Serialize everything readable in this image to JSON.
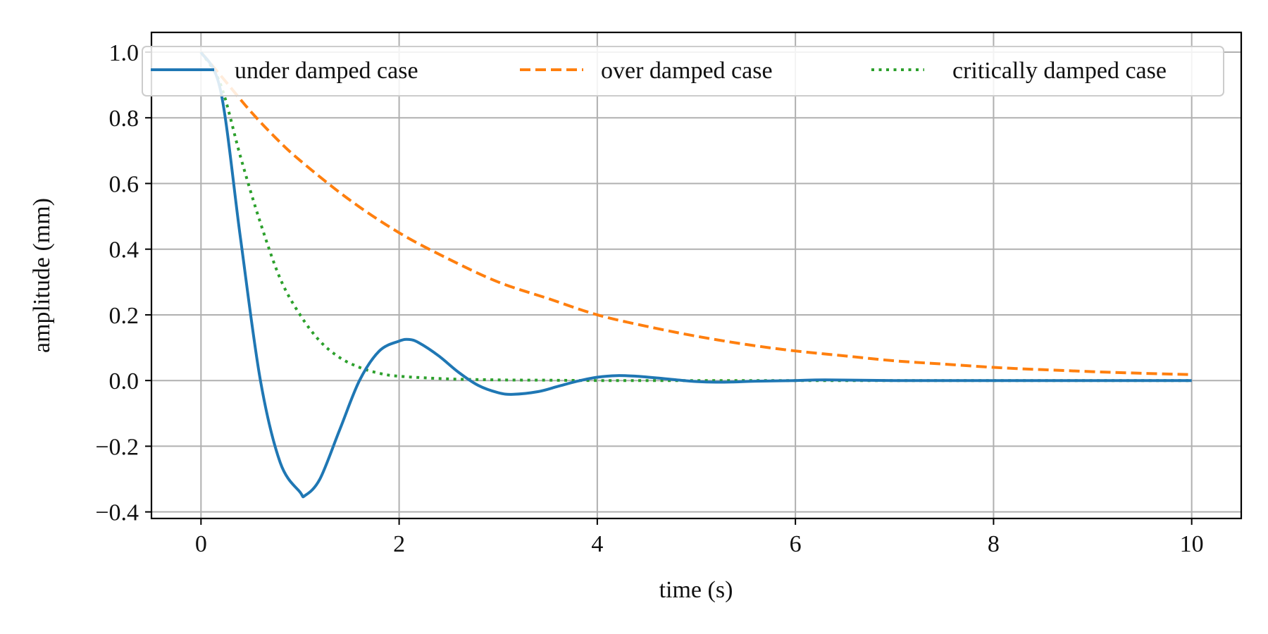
{
  "chart_data": {
    "type": "line",
    "xlabel": "time (s)",
    "ylabel": "amplitude (mm)",
    "xlim": [
      -0.5,
      10.5
    ],
    "ylim": [
      -0.42,
      1.06
    ],
    "xticks": [
      0,
      2,
      4,
      6,
      8,
      10
    ],
    "xtick_labels": [
      "0",
      "2",
      "4",
      "6",
      "8",
      "10"
    ],
    "yticks": [
      -0.4,
      -0.2,
      0.0,
      0.2,
      0.4,
      0.6,
      0.8,
      1.0
    ],
    "ytick_labels": [
      "−0.4",
      "−0.2",
      "0.0",
      "0.2",
      "0.4",
      "0.6",
      "0.8",
      "1.0"
    ],
    "grid": true,
    "legend_placement": "top",
    "series": [
      {
        "name": "under damped case",
        "color": "#1f77b4",
        "style": "solid",
        "x": [
          0,
          0.2,
          0.4,
          0.6,
          0.8,
          1.0,
          1.05,
          1.2,
          1.4,
          1.6,
          1.8,
          2.0,
          2.1,
          2.2,
          2.4,
          2.6,
          2.8,
          3.0,
          3.15,
          3.4,
          3.6,
          3.8,
          4.0,
          4.2,
          4.4,
          4.6,
          4.8,
          5.0,
          5.2,
          5.4,
          5.6,
          6.0,
          6.3,
          7.0,
          8.0,
          9.0,
          10.0
        ],
        "y": [
          1.0,
          0.88,
          0.43,
          0.0,
          -0.25,
          -0.34,
          -0.35,
          -0.3,
          -0.15,
          0.0,
          0.09,
          0.12,
          0.125,
          0.115,
          0.075,
          0.025,
          -0.015,
          -0.037,
          -0.042,
          -0.034,
          -0.018,
          -0.002,
          0.01,
          0.015,
          0.013,
          0.008,
          0.002,
          -0.003,
          -0.005,
          -0.004,
          -0.002,
          0.0,
          0.002,
          0.0,
          0.0,
          0.0,
          0.0
        ]
      },
      {
        "name": "over damped case",
        "color": "#ff7f0e",
        "style": "dashed",
        "x": [
          0,
          0.25,
          0.5,
          0.75,
          1.0,
          1.5,
          2.0,
          2.5,
          3.0,
          3.5,
          4.0,
          4.5,
          5.0,
          5.5,
          6.0,
          6.5,
          7.0,
          7.5,
          8.0,
          8.5,
          9.0,
          9.5,
          10.0
        ],
        "y": [
          1.0,
          0.91,
          0.82,
          0.74,
          0.67,
          0.55,
          0.45,
          0.37,
          0.3,
          0.25,
          0.2,
          0.165,
          0.135,
          0.11,
          0.09,
          0.075,
          0.06,
          0.05,
          0.04,
          0.033,
          0.027,
          0.022,
          0.018
        ]
      },
      {
        "name": "critically damped case",
        "color": "#2ca02c",
        "style": "dotted",
        "x": [
          0,
          0.2,
          0.4,
          0.6,
          0.8,
          1.0,
          1.2,
          1.4,
          1.6,
          1.8,
          2.0,
          2.5,
          3.0,
          3.5,
          4.0,
          5.0,
          6.0,
          7.0,
          8.0,
          9.0,
          10.0
        ],
        "y": [
          1.0,
          0.9,
          0.68,
          0.48,
          0.31,
          0.2,
          0.12,
          0.07,
          0.04,
          0.022,
          0.013,
          0.005,
          0.002,
          0.001,
          0.0,
          0.0,
          0.0,
          0.0,
          0.0,
          0.0,
          0.0
        ]
      }
    ]
  }
}
